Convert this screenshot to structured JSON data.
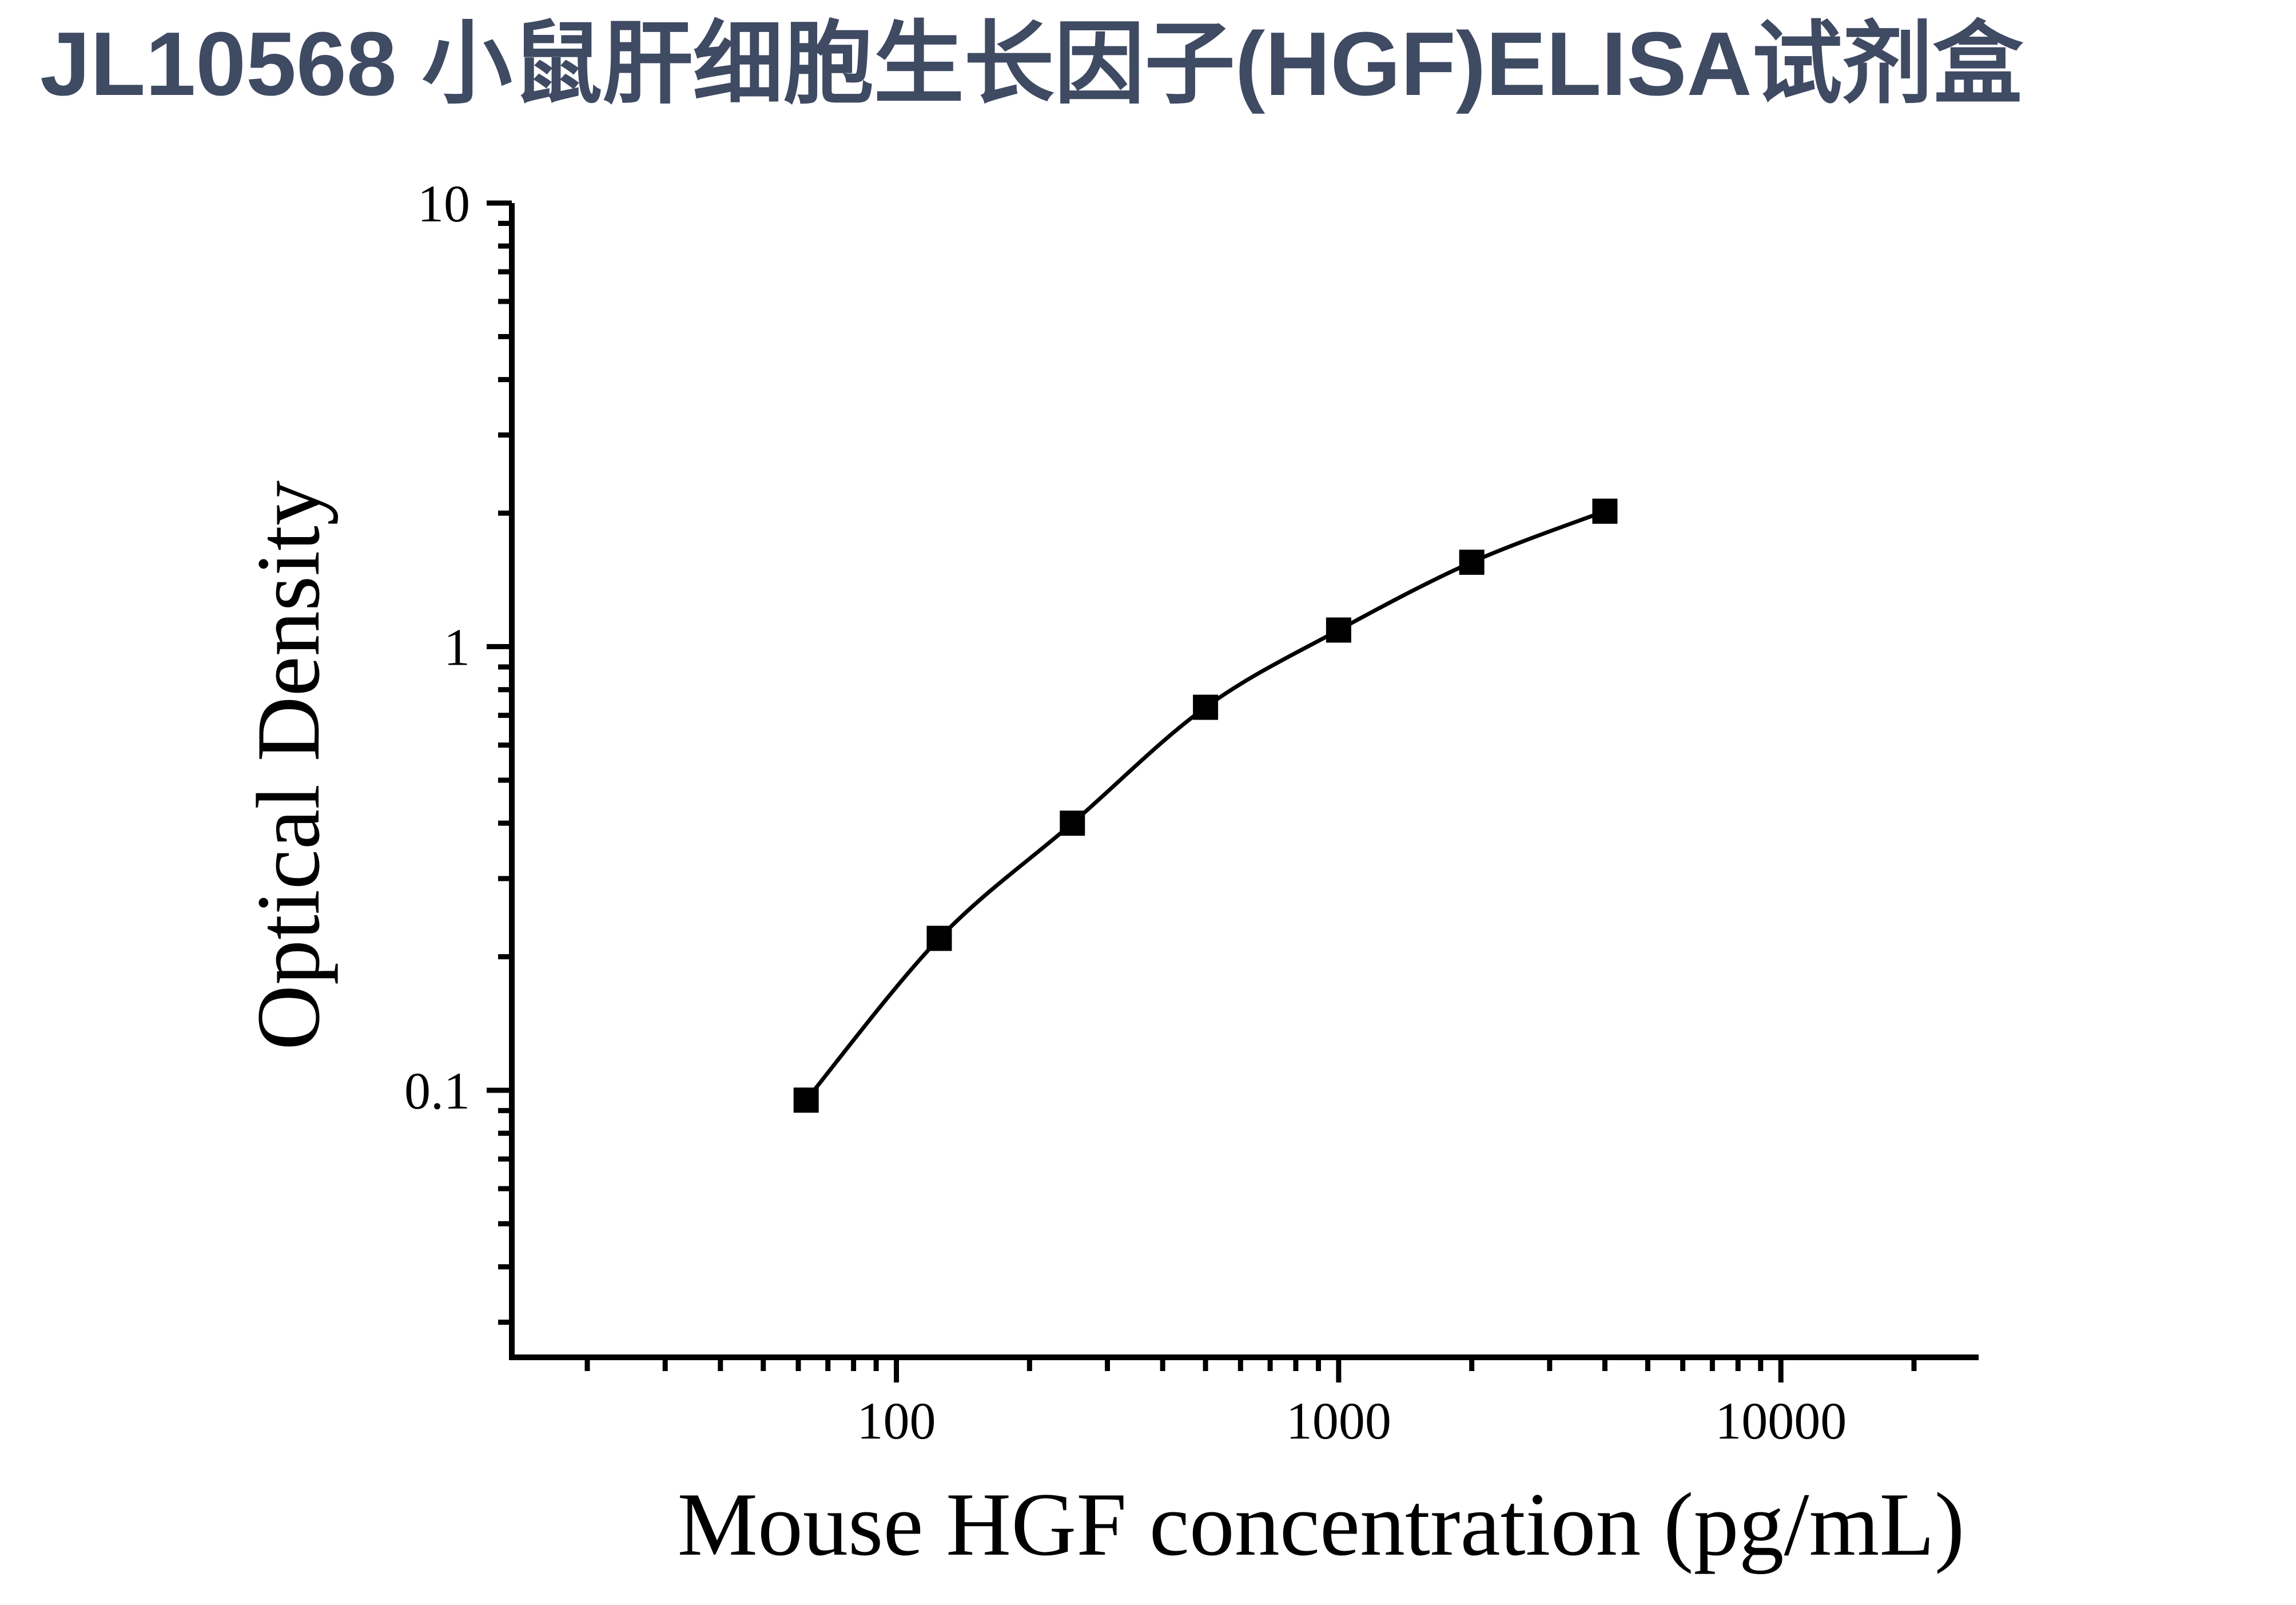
{
  "title": "JL10568 小鼠肝细胞生长因子(HGF)ELISA试剂盒",
  "title_color": "#3F4A63",
  "chart_data": {
    "type": "scatter",
    "subtype": "standard-curve-line",
    "x": [
      62.5,
      125,
      250,
      500,
      1000,
      2000,
      4000
    ],
    "y": [
      0.095,
      0.22,
      0.4,
      0.73,
      1.09,
      1.55,
      2.02
    ],
    "xlabel": "Mouse HGF concentration (pg/mL)",
    "ylabel": "Optical Density",
    "xscale": "log",
    "yscale": "log",
    "xlim": [
      13.5,
      28000
    ],
    "ylim": [
      0.025,
      10
    ],
    "x_major_ticks": [
      100,
      1000,
      10000
    ],
    "x_major_labels": [
      "100",
      "1000",
      "10000"
    ],
    "y_major_ticks": [
      10,
      1,
      0.1
    ],
    "y_major_labels": [
      "10",
      "1",
      "0.1"
    ],
    "grid": false,
    "legend": null,
    "marker": "filled-square",
    "marker_color": "#000000",
    "line_color": "#000000"
  }
}
